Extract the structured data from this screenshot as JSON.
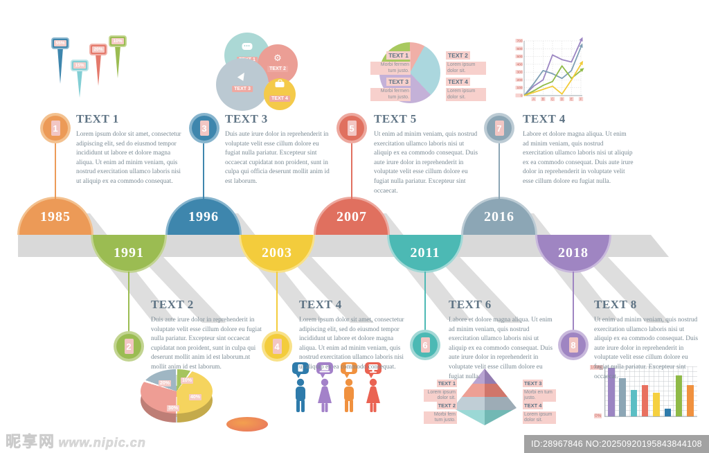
{
  "watermark": {
    "site_name": "昵享网",
    "site_url": "www.nipic.cn",
    "id_label": "ID:28967846 NO:20250920195843844108"
  },
  "map_pins": {
    "pins": [
      {
        "label": "55%",
        "color": "#3E86AD",
        "light": "#8FB9D0"
      },
      {
        "label": "15%",
        "color": "#82CED4",
        "light": "#BFE6E9"
      },
      {
        "label": "20%",
        "color": "#E4796B",
        "light": "#F1B3AB"
      },
      {
        "label": "10%",
        "color": "#9BBC52",
        "light": "#C6D894"
      }
    ]
  },
  "venn": {
    "items": [
      {
        "label": "TEXT 1",
        "icon": "chat-bubble-icon",
        "color": "#ABD8D5"
      },
      {
        "label": "TEXT 2",
        "icon": "gear-icon",
        "color": "#EB9E95"
      },
      {
        "label": "TEXT 3",
        "icon": "hand-cursor-icon",
        "color": "#BBC9D2"
      },
      {
        "label": "TEXT 4",
        "icon": "briefcase-icon",
        "color": "#F4CA4A"
      }
    ]
  },
  "pie_chart": {
    "type": "pie",
    "slices": [
      {
        "value": 8,
        "color": "#F0AFA7"
      },
      {
        "value": 30,
        "color": "#ABD7DE"
      },
      {
        "value": 38,
        "color": "#C4B1D8"
      },
      {
        "value": 24,
        "color": "#A8C95F"
      }
    ],
    "labels": [
      {
        "title": "TEXT 1",
        "desc": "Morbi fermen tum justo."
      },
      {
        "title": "TEXT 2",
        "desc": "Lorem ipsum dolor sit."
      },
      {
        "title": "TEXT 3",
        "desc": "Morbi fermen tum justo."
      },
      {
        "title": "TEXT 4",
        "desc": "Lorem ipsum dolor sit."
      }
    ]
  },
  "line_chart": {
    "type": "line",
    "x_labels": [
      "A",
      "B",
      "C",
      "D",
      "E",
      "F"
    ],
    "y_ticks": [
      0,
      100,
      200,
      300,
      400,
      500,
      600,
      700
    ],
    "ylim": [
      0,
      700
    ],
    "series": [
      {
        "name": "purple",
        "color": "#9B85C2",
        "values": [
          0,
          120,
          200,
          520,
          460,
          430,
          700
        ]
      },
      {
        "name": "steel",
        "color": "#7F9FB5",
        "values": [
          0,
          150,
          320,
          280,
          220,
          320,
          620
        ]
      },
      {
        "name": "green",
        "color": "#8FBA47",
        "values": [
          0,
          60,
          130,
          180,
          380,
          220,
          320
        ]
      },
      {
        "name": "yellow",
        "color": "#F2CB38",
        "values": [
          0,
          40,
          80,
          120,
          20,
          200,
          400
        ]
      }
    ]
  },
  "timeline": {
    "items": [
      {
        "num": "1",
        "year": "1985",
        "color": "#EC9A57",
        "light": "#F3C18F",
        "title": "TEXT 1",
        "body": "Lorem ipsum dolor sit amet, consectetur adipiscing elit, sed do eiusmod tempor incididunt ut labore et dolore magna aliqua. Ut enim ad minim veniam, quis nostrud exercitation ullamco laboris nisi ut aliquip ex ea commodo consequat."
      },
      {
        "num": "2",
        "year": "1991",
        "color": "#9BBC52",
        "light": "#C2D491",
        "title": "TEXT 2",
        "body": "Duis aute irure dolor in reprehenderit in voluptate velit esse cillum dolore eu fugiat nulla pariatur. Excepteur sint occaecat cupidatat non proident, sunt in culpa qui  deserunt mollit anim id est laborum.nt mollit anim id est laborum."
      },
      {
        "num": "3",
        "year": "1996",
        "color": "#3E86AD",
        "light": "#86B4CD",
        "title": "TEXT 3",
        "body": "Duis aute irure dolor in reprehenderit in voluptate velit esse cillum dolore eu fugiat nulla pariatur. Excepteur sint occaecat cupidatat non proident, sunt in culpa qui officia deserunt mollit anim id est laborum."
      },
      {
        "num": "4",
        "year": "2003",
        "color": "#F3CC3C",
        "light": "#F8E189",
        "title": "TEXT 4",
        "body": "Lorem ipsum dolor sit amet, consectetur adipiscing elit, sed do eiusmod tempor incididunt ut labore et dolore magna aliqua. Ut enim ad minim veniam, quis nostrud exercitation ullamco laboris nisi ut aliquip ex ea commodo consequat."
      },
      {
        "num": "5",
        "year": "2007",
        "color": "#E0705F",
        "light": "#EDA89E",
        "title": "TEXT 5",
        "body": "Ut enim ad minim veniam, quis nostrud exercitation ullamco laboris nisi ut aliquip ex ea commodo consequat. Duis aute irure dolor in reprehenderit in voluptate velit esse cillum dolore eu fugiat nulla pariatur. Excepteur sint occaecat."
      },
      {
        "num": "6",
        "year": "2011",
        "color": "#4CB9B4",
        "light": "#A2D8D6",
        "title": "TEXT 6",
        "body": "Labore et dolore magna aliqua. Ut enim ad minim veniam, quis nostrud exercitation ullamco laboris nisi ut aliquip ex ea commodo consequat. Duis aute irure dolor in reprehenderit in voluptate velit esse cillum dolore eu fugiat nulla."
      },
      {
        "num": "7",
        "year": "2016",
        "color": "#8CA6B5",
        "light": "#BCCBD4",
        "title": "TEXT 4",
        "body": "Labore et dolore magna aliqua. Ut enim ad minim veniam, quis nostrud exercitation ullamco laboris nisi ut aliquip ex ea commodo consequat. Duis aute irure dolor in reprehenderit in voluptate velit esse cillum dolore eu fugiat nulla."
      },
      {
        "num": "8",
        "year": "2018",
        "color": "#9F85C2",
        "light": "#C8B8DC",
        "title": "TEXT 8",
        "body": "Ut enim ad minim veniam, quis nostrud exercitation ullamco laboris nisi ut aliquip ex ea commodo consequat. Duis aute irure dolor in reprehenderit in voluptate velit esse cillum dolore eu fugiat nulla pariatur. Excepteur sint occaecat."
      }
    ]
  },
  "pie_3d": {
    "type": "pie",
    "slices": [
      {
        "label": "10%",
        "value": 10,
        "color": "#A6C45E"
      },
      {
        "label": "40%",
        "value": 40,
        "color": "#F5D45E"
      },
      {
        "label": "30%",
        "value": 30,
        "color": "#EE9D94"
      },
      {
        "label": "20%",
        "value": 20,
        "color": "#9FB6C3"
      }
    ]
  },
  "people": {
    "items": [
      {
        "color": "#2E7BAB",
        "bubble_icon": "smartphone-icon"
      },
      {
        "color": "#A381C9",
        "bubble_icon": "laptop-icon"
      },
      {
        "color": "#F0913F",
        "bubble_icon": "tablet-icon"
      },
      {
        "color": "#EA6352",
        "bubble_icon": "desktop-icon"
      }
    ]
  },
  "pyramid": {
    "layers": [
      "#A48BC4",
      "#E88476",
      "#AFC0CB",
      "#7FCDC9"
    ],
    "labels": [
      {
        "title": "TEXT 1",
        "desc": "Lorem ipsum dolor sit."
      },
      {
        "title": "TEXT 2",
        "desc": "Morbi fem tum justo."
      },
      {
        "title": "TEXT 3",
        "desc": "Morbi en tum justo."
      },
      {
        "title": "TEXT 4",
        "desc": "Lorem ipsum dolor sit."
      }
    ]
  },
  "bar_chart": {
    "type": "bar",
    "ylim": [
      0,
      100
    ],
    "y_top_label": "100%",
    "y_bottom_label": "0%",
    "values": [
      100,
      78,
      54,
      65,
      48,
      16,
      84,
      65
    ],
    "colors": [
      "#9B85C2",
      "#8CA6B5",
      "#5BBEC4",
      "#E8705F",
      "#F5D040",
      "#2E7BAB",
      "#8FBA47",
      "#F0913F"
    ]
  }
}
